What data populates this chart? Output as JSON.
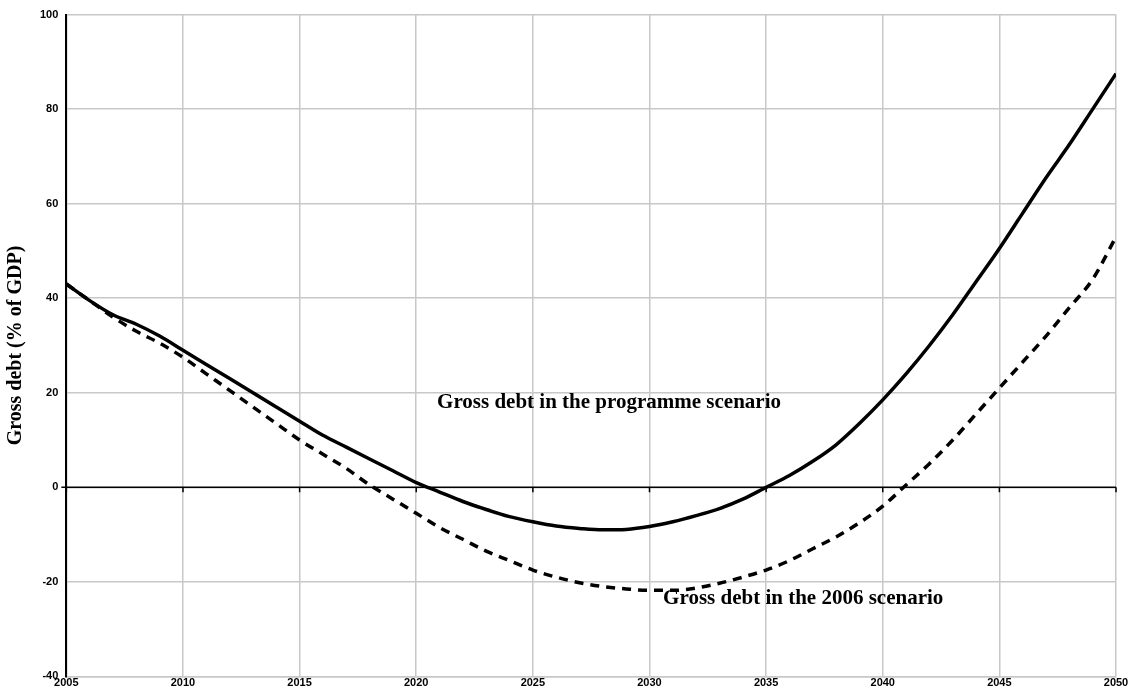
{
  "chart_data": {
    "type": "line",
    "ylabel": "Gross debt (% of GDP)",
    "x": [
      2005,
      2006,
      2007,
      2008,
      2009,
      2010,
      2011,
      2012,
      2013,
      2014,
      2015,
      2016,
      2017,
      2018,
      2019,
      2020,
      2021,
      2022,
      2023,
      2024,
      2025,
      2026,
      2027,
      2028,
      2029,
      2030,
      2031,
      2032,
      2033,
      2034,
      2035,
      2036,
      2037,
      2038,
      2039,
      2040,
      2041,
      2042,
      2043,
      2044,
      2045,
      2046,
      2047,
      2048,
      2049,
      2050
    ],
    "series": [
      {
        "name": "Gross debt in the programme scenario",
        "color": "#000000",
        "line_style": "solid",
        "values": [
          43,
          39.5,
          36.5,
          34.5,
          32,
          29,
          26,
          23,
          20,
          17,
          14,
          11,
          8.5,
          6,
          3.5,
          1,
          -1,
          -3,
          -4.7,
          -6.2,
          -7.3,
          -8.2,
          -8.7,
          -9,
          -8.9,
          -8.3,
          -7.3,
          -6,
          -4.5,
          -2.5,
          0,
          2.5,
          5.5,
          9,
          13.5,
          18.5,
          24,
          30,
          36.5,
          43.5,
          50.5,
          58,
          65.5,
          72.5,
          80,
          87.5
        ]
      },
      {
        "name": "Gross debt in the 2006 scenario",
        "color": "#000000",
        "line_style": "dashed",
        "values": [
          43,
          39.5,
          36,
          33,
          30.5,
          27.5,
          24,
          20.5,
          17,
          13.5,
          10,
          7,
          4,
          0.5,
          -2.5,
          -5.5,
          -8.5,
          -11,
          -13.5,
          -15.5,
          -17.5,
          -19,
          -20.2,
          -21,
          -21.5,
          -21.8,
          -21.8,
          -21.3,
          -20.3,
          -19,
          -17.5,
          -15.5,
          -13,
          -10.5,
          -7.5,
          -4,
          0.5,
          5,
          10,
          15.5,
          21,
          26.5,
          32,
          38,
          44,
          53
        ]
      }
    ],
    "xlim": [
      2005,
      2050
    ],
    "xticks": [
      2005,
      2010,
      2015,
      2020,
      2025,
      2030,
      2035,
      2040,
      2045,
      2050
    ],
    "ylim": [
      -40,
      100
    ],
    "yticks": [
      -40,
      -20,
      0,
      20,
      40,
      60,
      80,
      100
    ],
    "grid": true,
    "legend": false,
    "marker": "none",
    "ref_lines": [
      {
        "axis": "y",
        "value": 0,
        "color": "#000000"
      }
    ]
  }
}
